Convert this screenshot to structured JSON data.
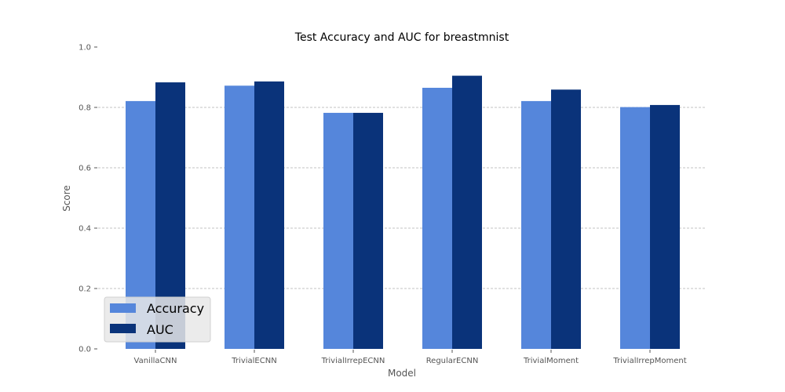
{
  "chart_data": {
    "type": "bar",
    "title": "Test Accuracy and AUC for breastmnist",
    "xlabel": "Model",
    "ylabel": "Score",
    "ylim": [
      0,
      1.0
    ],
    "yticks": [
      0.0,
      0.2,
      0.4,
      0.6,
      0.8,
      1.0
    ],
    "ytick_labels": [
      "0.0",
      "0.2",
      "0.4",
      "0.6",
      "0.8",
      "1.0"
    ],
    "grid": true,
    "legend_position": "lower-left",
    "categories": [
      "VanillaCNN",
      "TrivialECNN",
      "TrivialIrrepECNN",
      "RegularECNN",
      "TrivialMoment",
      "TrivialIrrepMoment"
    ],
    "series": [
      {
        "name": "Accuracy",
        "color": "#5586db",
        "values": [
          0.821,
          0.872,
          0.782,
          0.865,
          0.821,
          0.801
        ]
      },
      {
        "name": "AUC",
        "color": "#0a337a",
        "values": [
          0.883,
          0.886,
          0.782,
          0.905,
          0.859,
          0.808
        ]
      }
    ]
  }
}
